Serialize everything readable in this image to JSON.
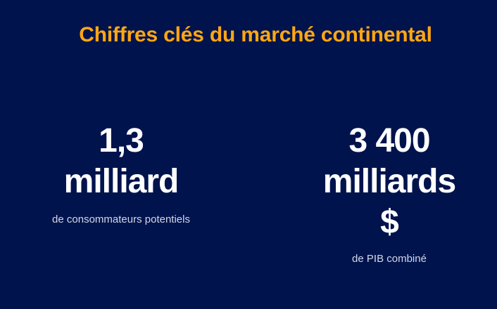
{
  "slide": {
    "title": "Chiffres clés du marché continental",
    "stats": [
      {
        "value_lines": [
          "1,3",
          "milliard"
        ],
        "caption": "de consommateurs potentiels"
      },
      {
        "value_lines": [
          "3 400",
          "milliards",
          "$"
        ],
        "caption": "de PIB combiné"
      }
    ],
    "colors": {
      "background": "#00134d",
      "accent": "#ffa713",
      "text": "#ffffff",
      "caption": "#d3d8e6"
    }
  }
}
